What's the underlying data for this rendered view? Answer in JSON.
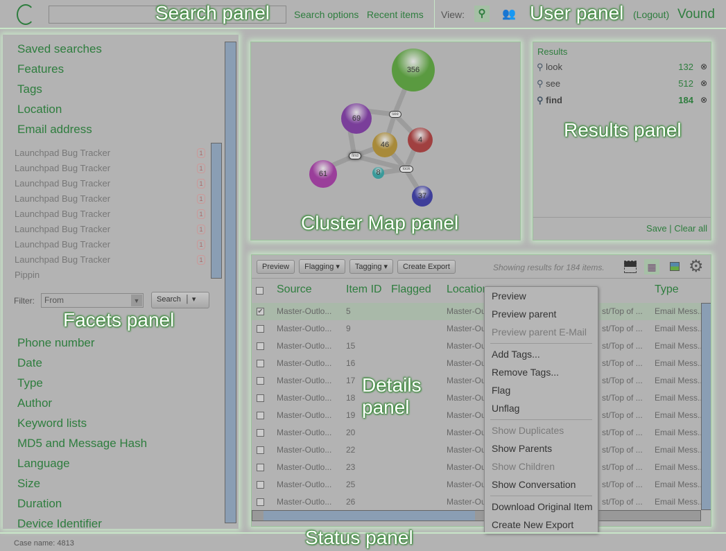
{
  "overlay": {
    "search": "Search panel",
    "user": "User panel",
    "facets": "Facets panel",
    "cluster": "Cluster Map panel",
    "results": "Results panel",
    "details": "Details panel",
    "status": "Status panel"
  },
  "search": {
    "placeholder": "",
    "options": "Search options",
    "recent": "Recent items"
  },
  "user": {
    "view": "View:",
    "logout": "(Logout)",
    "brand": "Vound"
  },
  "facets": {
    "top": [
      "Saved searches",
      "Features",
      "Tags",
      "Location",
      "Email address"
    ],
    "values": [
      {
        "label": "Launchpad Bug Tracker",
        "count": "1"
      },
      {
        "label": "Launchpad Bug Tracker",
        "count": "1"
      },
      {
        "label": "Launchpad Bug Tracker",
        "count": "1"
      },
      {
        "label": "Launchpad Bug Tracker",
        "count": "1"
      },
      {
        "label": "Launchpad Bug Tracker",
        "count": "1"
      },
      {
        "label": "Launchpad Bug Tracker",
        "count": "1"
      },
      {
        "label": "Launchpad Bug Tracker",
        "count": "1"
      },
      {
        "label": "Launchpad Bug Tracker",
        "count": "1"
      },
      {
        "label": "Pippin",
        "count": ""
      }
    ],
    "filter_label": "Filter:",
    "filter_value": "From",
    "search_btn": "Search",
    "bottom": [
      "Phone number",
      "Date",
      "Type",
      "Author",
      "Keyword lists",
      "MD5 and Message Hash",
      "Language",
      "Size",
      "Duration",
      "Device Identifier"
    ]
  },
  "cluster": {
    "bubbles": [
      {
        "label": "356",
        "color": "#5a9a40"
      },
      {
        "label": "69",
        "color": "#7a3e9a"
      },
      {
        "label": "46",
        "color": "#a88a3a"
      },
      {
        "label": "4",
        "color": "#a04040"
      },
      {
        "label": "61",
        "color": "#9a3e9a"
      },
      {
        "label": "8",
        "color": "#3a9a9a"
      },
      {
        "label": "37",
        "color": "#3e3e9a"
      }
    ],
    "terms": [
      "see",
      "find",
      "look"
    ]
  },
  "results": {
    "title": "Results",
    "items": [
      {
        "term": "look",
        "count": "132"
      },
      {
        "term": "see",
        "count": "512"
      },
      {
        "term": "find",
        "count": "184"
      }
    ],
    "save": "Save",
    "sep": "|",
    "clear": "Clear all"
  },
  "details": {
    "buttons": {
      "preview": "Preview",
      "flagging": "Flagging ▾",
      "tagging": "Tagging ▾",
      "export": "Create Export"
    },
    "status": "Showing results for 184 items.",
    "columns": {
      "source": "Source",
      "id": "Item ID",
      "flagged": "Flagged",
      "location": "Location",
      "type": "Type"
    },
    "rows": [
      {
        "source": "Master-Outlo...",
        "id": "5",
        "checked": true
      },
      {
        "source": "Master-Outlo...",
        "id": "9"
      },
      {
        "source": "Master-Outlo...",
        "id": "15"
      },
      {
        "source": "Master-Outlo...",
        "id": "16"
      },
      {
        "source": "Master-Outlo...",
        "id": "17"
      },
      {
        "source": "Master-Outlo...",
        "id": "18"
      },
      {
        "source": "Master-Outlo...",
        "id": "19"
      },
      {
        "source": "Master-Outlo...",
        "id": "20"
      },
      {
        "source": "Master-Outlo...",
        "id": "22"
      },
      {
        "source": "Master-Outlo...",
        "id": "23"
      },
      {
        "source": "Master-Outlo...",
        "id": "25"
      },
      {
        "source": "Master-Outlo...",
        "id": "26"
      }
    ],
    "location_prefix": "Master-Ou",
    "location_suffix": "st/Top of ...",
    "type_value": "Email Mess..."
  },
  "menu": [
    "Preview",
    "Preview parent",
    "Preview parent E-Mail",
    "Add Tags...",
    "Remove Tags...",
    "Flag",
    "Unflag",
    "Show Duplicates",
    "Show Parents",
    "Show Children",
    "Show Conversation",
    "Download Original Item",
    "Create New Export"
  ],
  "statusbar": {
    "case": "Case name: 4813"
  }
}
